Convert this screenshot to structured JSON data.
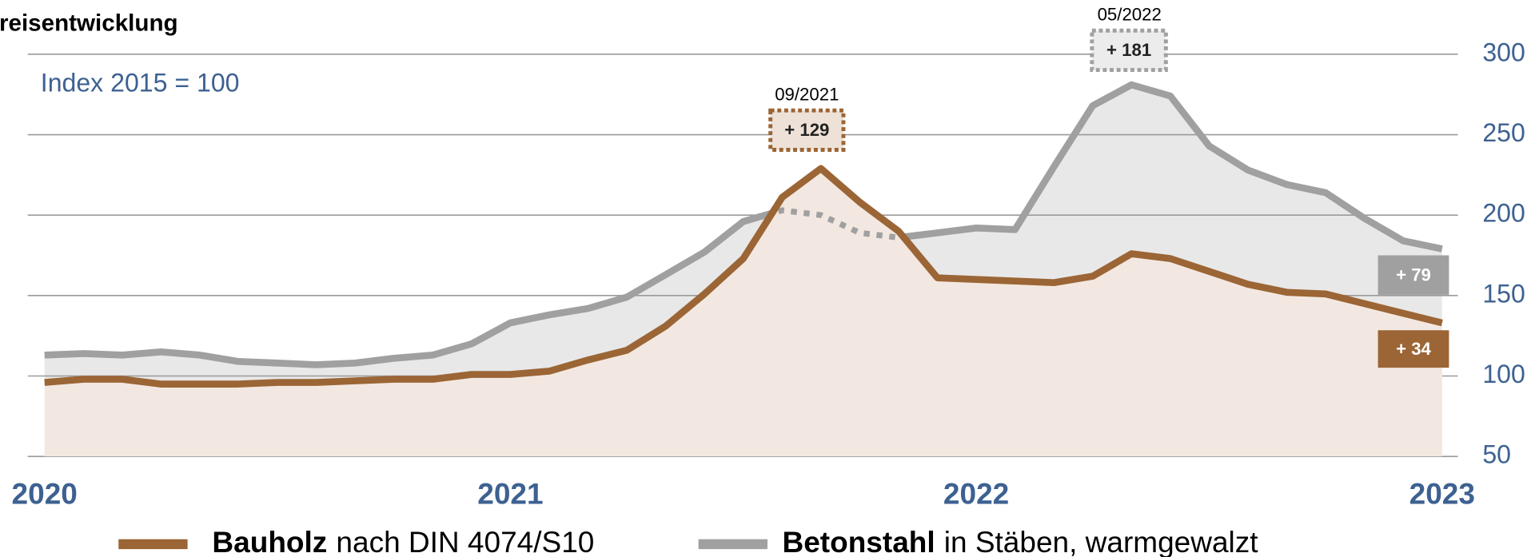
{
  "chart_data": {
    "type": "line",
    "title": "Preisentwicklung",
    "subtitle": "Index 2015 = 100",
    "categories": [
      "2020",
      null,
      null,
      null,
      null,
      null,
      null,
      null,
      null,
      null,
      null,
      null,
      "2021",
      null,
      null,
      null,
      null,
      null,
      null,
      null,
      null,
      null,
      null,
      null,
      "2022",
      null,
      null,
      null,
      null,
      null,
      null,
      null,
      null,
      null,
      null,
      null,
      "2023"
    ],
    "ylim": [
      50,
      300
    ],
    "yticks": [
      50,
      100,
      150,
      200,
      250,
      300
    ],
    "grid": true,
    "area": true,
    "series": [
      {
        "name": "Bauholz",
        "description": "nach DIN 4074/S10",
        "color": "#9b6535",
        "fill": "#f3e8e1",
        "values": [
          96,
          98,
          98,
          95,
          95,
          95,
          96,
          96,
          97,
          98,
          98,
          101,
          101,
          103,
          110,
          116,
          131,
          151,
          173,
          211,
          229,
          208,
          190,
          161,
          160,
          159,
          158,
          162,
          176,
          173,
          165,
          157,
          152,
          151,
          145,
          139,
          133
        ]
      },
      {
        "name": "Betonstahl",
        "description": "in Stäben, warmgewalzt",
        "color": "#a0a0a0",
        "fill": "#e8e8e8",
        "values": [
          113,
          114,
          113,
          115,
          113,
          109,
          108,
          107,
          108,
          111,
          113,
          120,
          133,
          138,
          142,
          149,
          163,
          177,
          196,
          203,
          200,
          189,
          186,
          189,
          192,
          191,
          230,
          268,
          281,
          274,
          243,
          228,
          219,
          214,
          198,
          184,
          179
        ]
      }
    ],
    "annotations": [
      {
        "date": "09/2021",
        "text": "+ 129"
      },
      {
        "date": "05/2022",
        "text": "+ 181"
      },
      {
        "text": "+ 79"
      },
      {
        "text": "+ 34"
      }
    ]
  }
}
